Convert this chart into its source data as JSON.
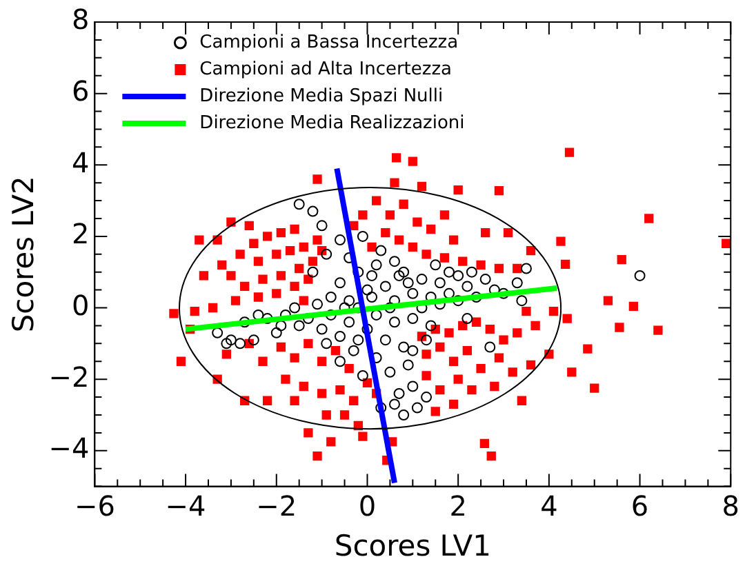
{
  "chart_data": {
    "type": "scatter",
    "xlabel": "Scores LV1",
    "ylabel": "Scores LV2",
    "xlim": [
      -6,
      8
    ],
    "ylim": [
      -5,
      8
    ],
    "xticks": [
      -6,
      {
        "value": -5.5,
        "label": null
      },
      {
        "value": -5,
        "label": null
      },
      {
        "value": -4.5,
        "label": null
      },
      -4,
      {
        "value": -3.5,
        "label": null
      },
      {
        "value": -3,
        "label": null
      },
      {
        "value": -2.5,
        "label": null
      },
      -2,
      {
        "value": -1.5,
        "label": null
      },
      {
        "value": -1,
        "label": null
      },
      {
        "value": -0.5,
        "label": null
      },
      0,
      {
        "value": 0.5,
        "label": null
      },
      {
        "value": 1,
        "label": null
      },
      {
        "value": 1.5,
        "label": null
      },
      2,
      {
        "value": 2.5,
        "label": null
      },
      {
        "value": 3,
        "label": null
      },
      {
        "value": 3.5,
        "label": null
      },
      4,
      {
        "value": 4.5,
        "label": null
      },
      {
        "value": 5,
        "label": null
      },
      {
        "value": 5.5,
        "label": null
      },
      6,
      {
        "value": 6.5,
        "label": null
      },
      {
        "value": 7,
        "label": null
      },
      {
        "value": 7.5,
        "label": null
      },
      8
    ],
    "yticks": [
      {
        "value": -5,
        "label": null
      },
      {
        "value": -4.5,
        "label": null
      },
      -4,
      {
        "value": -3.5,
        "label": null
      },
      {
        "value": -3,
        "label": null
      },
      {
        "value": -2.5,
        "label": null
      },
      -2,
      {
        "value": -1.5,
        "label": null
      },
      {
        "value": -1,
        "label": null
      },
      {
        "value": -0.5,
        "label": null
      },
      0,
      {
        "value": 0.5,
        "label": null
      },
      {
        "value": 1,
        "label": null
      },
      {
        "value": 1.5,
        "label": null
      },
      2,
      {
        "value": 2.5,
        "label": null
      },
      {
        "value": 3,
        "label": null
      },
      {
        "value": 3.5,
        "label": null
      },
      4,
      {
        "value": 4.5,
        "label": null
      },
      {
        "value": 5,
        "label": null
      },
      {
        "value": 5.5,
        "label": null
      },
      6,
      {
        "value": 6.5,
        "label": null
      },
      {
        "value": 7,
        "label": null
      },
      {
        "value": 7.5,
        "label": null
      },
      8
    ],
    "legend": "top left",
    "grid": false,
    "series": [
      {
        "name": "Campioni a Bassa Incertezza",
        "type": "scatter",
        "marker": "circle",
        "color": "#000000",
        "x": [
          -3.3,
          -3.0,
          -2.7,
          -2.5,
          -2.2,
          -2.0,
          -1.8,
          -1.6,
          -1.5,
          -1.3,
          -1.1,
          -1.0,
          -0.8,
          -0.8,
          -0.6,
          -0.6,
          -0.4,
          -0.4,
          -0.2,
          -0.2,
          0.0,
          0.0,
          0.2,
          0.2,
          0.4,
          0.4,
          0.6,
          0.6,
          0.8,
          0.8,
          1.0,
          1.0,
          1.2,
          1.2,
          1.4,
          1.4,
          1.6,
          1.6,
          1.8,
          2.0,
          2.0,
          2.2,
          2.4,
          2.6,
          2.8,
          3.0,
          3.3,
          3.4,
          -1.2,
          -1.5,
          -1.2,
          -1.0,
          -0.9,
          -0.6,
          -0.4,
          -0.1,
          0.1,
          0.3,
          0.6,
          0.9,
          -0.9,
          -0.6,
          -0.3,
          -0.1,
          0.2,
          0.5,
          0.7,
          0.9,
          1.0,
          1.1,
          1.3,
          0.8,
          0.6,
          1.0,
          0.3,
          -3.1,
          -2.4,
          -1.9,
          -2.8,
          1.5,
          1.8,
          2.3,
          0.5,
          -0.5,
          0.1,
          -0.2,
          0.7,
          1.3,
          6.0,
          2.7,
          2.2,
          3.5
        ],
        "values": [
          -0.7,
          -0.9,
          -0.4,
          -0.9,
          -0.3,
          -0.7,
          -0.2,
          0.0,
          -0.5,
          -0.3,
          0.1,
          -0.6,
          0.3,
          -0.2,
          0.7,
          -0.8,
          0.2,
          -0.4,
          1.0,
          0.0,
          0.5,
          -0.6,
          1.2,
          -0.2,
          0.6,
          -0.9,
          0.2,
          -0.4,
          1.0,
          -1.1,
          0.4,
          -0.3,
          0.8,
          0.0,
          0.3,
          -0.5,
          0.7,
          0.1,
          0.4,
          0.9,
          0.2,
          0.6,
          0.3,
          0.8,
          0.5,
          0.4,
          0.7,
          0.2,
          1.0,
          2.9,
          2.7,
          2.3,
          1.5,
          1.9,
          1.4,
          2.0,
          0.9,
          1.6,
          1.3,
          0.7,
          -1.0,
          -1.5,
          -1.2,
          -1.9,
          -1.4,
          -1.8,
          -2.4,
          -1.6,
          -2.2,
          -2.8,
          -2.5,
          -3.0,
          -2.7,
          -1.2,
          -2.8,
          -1.0,
          -0.2,
          -0.5,
          -1.0,
          1.2,
          1.0,
          1.0,
          0.0,
          0.0,
          0.3,
          -0.9,
          0.9,
          -0.9,
          0.9,
          -1.1,
          -0.3,
          1.1
        ]
      },
      {
        "name": "Campioni ad Alta Incertezza",
        "type": "scatter",
        "marker": "square",
        "color": "#ff0000",
        "x": [
          -2.5,
          -2.2,
          -1.9,
          -1.6,
          -2.4,
          -2.0,
          -1.7,
          -1.4,
          -1.2,
          -1.5,
          -1.9,
          -2.3,
          -2.7,
          -3.0,
          -3.2,
          -2.8,
          -3.3,
          -3.7,
          -3.6,
          -2.9,
          -2.4,
          -2.0,
          -1.6,
          -1.3,
          -1.1,
          -1.0,
          -2.6,
          -3.0,
          -1.4,
          -3.4,
          -3.8,
          -3.9,
          -3.1,
          -2.6,
          -2.3,
          -1.9,
          -1.6,
          -1.3,
          -1.0,
          -0.7,
          -0.4,
          -1.8,
          -1.4,
          -1.0,
          -0.6,
          -0.3,
          -2.2,
          -1.6,
          -0.9,
          -0.5,
          -0.2,
          -3.3,
          -2.7,
          0.0,
          -0.1,
          0.2,
          -0.1,
          0.2,
          0.5,
          0.8,
          1.1,
          1.4,
          1.7,
          0.4,
          0.7,
          1.0,
          1.3,
          1.7,
          2.1,
          2.5,
          2.9,
          3.3,
          3.6,
          2.6,
          3.1,
          0.1,
          -0.3,
          2.0,
          1.2,
          0.6,
          1.9,
          1.2,
          1.5,
          1.8,
          2.1,
          2.4,
          2.7,
          3.0,
          3.3,
          3.7,
          1.3,
          1.6,
          1.9,
          2.2,
          2.5,
          2.9,
          3.2,
          3.6,
          4.0,
          1.3,
          1.6,
          2.0,
          2.3,
          2.8,
          3.4,
          1.5,
          1.9,
          3.5,
          4.4,
          4.5,
          4.1,
          -4.26,
          -4.1,
          -1.1,
          0.64,
          1.0,
          4.45,
          6.2,
          7.9,
          5.6,
          5.86,
          6.4,
          5.3,
          5.0,
          4.85,
          5.55,
          2.58,
          2.73,
          2.9,
          4.26,
          4.36,
          -1.1,
          -0.8,
          -1.3,
          0.43,
          0.55
        ],
        "values": [
          1.8,
          2.0,
          2.1,
          2.2,
          1.3,
          1.5,
          1.6,
          1.7,
          1.3,
          1.1,
          0.9,
          0.8,
          0.6,
          0.9,
          1.2,
          1.5,
          1.9,
          1.9,
          0.9,
          0.2,
          0.3,
          0.4,
          0.6,
          0.8,
          1.9,
          1.6,
          2.3,
          2.4,
          0.2,
          0.0,
          -0.1,
          -0.6,
          -1.3,
          -1.0,
          -1.5,
          -1.1,
          -1.4,
          -1.0,
          -1.5,
          -1.2,
          -1.7,
          -2.0,
          -2.2,
          -2.4,
          -2.3,
          -2.6,
          -2.6,
          -2.6,
          -3.0,
          -3.0,
          -3.3,
          -2.0,
          -2.6,
          -2.1,
          -3.6,
          -2.4,
          2.6,
          3.0,
          2.6,
          2.9,
          2.4,
          2.2,
          2.6,
          2.1,
          1.9,
          1.7,
          1.5,
          1.4,
          1.3,
          1.2,
          1.1,
          1.1,
          1.6,
          2.1,
          2.1,
          1.7,
          2.3,
          3.3,
          3.4,
          3.5,
          1.9,
          -0.8,
          -0.6,
          -0.7,
          -0.5,
          -0.4,
          -0.6,
          -0.9,
          -0.7,
          -0.5,
          -1.3,
          -1.1,
          -1.5,
          -1.2,
          -1.7,
          -1.4,
          -1.8,
          -1.6,
          -1.3,
          -1.9,
          -2.3,
          -2.0,
          -2.3,
          -2.2,
          -2.6,
          -2.9,
          -2.7,
          -0.1,
          -0.3,
          -1.8,
          -0.1,
          -0.16,
          -1.5,
          3.6,
          4.2,
          4.1,
          4.35,
          2.5,
          1.8,
          1.35,
          0.04,
          -0.63,
          0.2,
          -2.25,
          -1.15,
          -0.55,
          -3.8,
          -4.15,
          3.28,
          1.86,
          1.22,
          -4.15,
          -3.75,
          -3.5,
          -4.27,
          -3.75
        ]
      },
      {
        "name": "Direzione Media Spazi Nulli",
        "type": "line",
        "marker": "none",
        "color": "#0000ff",
        "x": [
          -0.67,
          0.6
        ],
        "values": [
          3.9,
          -4.9
        ]
      },
      {
        "name": "Direzione Media Realizzazioni",
        "type": "line",
        "marker": "none",
        "color": "#00ff00",
        "x": [
          -4.0,
          4.17
        ],
        "values": [
          -0.6,
          0.55
        ]
      }
    ]
  }
}
